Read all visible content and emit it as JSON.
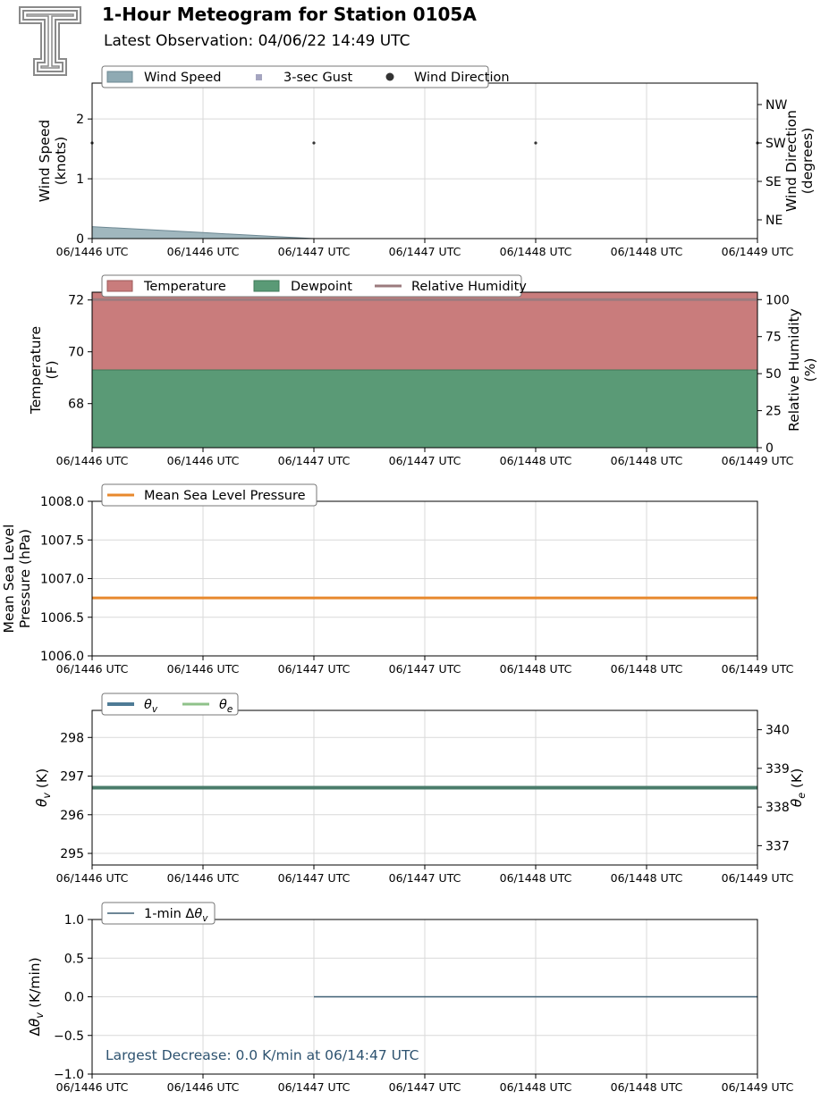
{
  "header": {
    "title": "1-Hour Meteogram for Station 0105A",
    "subtitle": "Latest Observation: 04/06/22 14:49 UTC"
  },
  "x_tick_labels": [
    "06/1446 UTC",
    "06/1446 UTC",
    "06/1447 UTC",
    "06/1447 UTC",
    "06/1448 UTC",
    "06/1448 UTC",
    "06/1449 UTC"
  ],
  "chart_data": [
    {
      "id": "wind",
      "type": "area",
      "ylabel": "Wind Speed\n(knots)",
      "y2label": "Wind Direction\n(degrees)",
      "ylim": [
        0,
        2.6
      ],
      "yticks": [
        0,
        1,
        2
      ],
      "y2ticks": [
        "NE",
        "SE",
        "SW",
        "NW"
      ],
      "legend": [
        "Wind Speed",
        "3-sec Gust",
        "Wind Direction"
      ],
      "wind_speed": {
        "x": [
          0,
          1,
          2,
          3,
          4,
          5,
          6
        ],
        "values": [
          0.2,
          0.1,
          0.0,
          0.0,
          0.0,
          0.0,
          0.0
        ]
      },
      "gust": {
        "x": [],
        "values": []
      },
      "wind_direction": {
        "x": [
          0,
          2,
          4,
          6
        ],
        "values": [
          "SW",
          "SW",
          "SW",
          "SW"
        ]
      },
      "grid": true,
      "colors": {
        "speed": "#8faab3",
        "direction": "#333333"
      }
    },
    {
      "id": "temp",
      "type": "area",
      "ylabel": "Temperature\n(F)",
      "y2label": "Relative Humidity\n(%)",
      "ylim": [
        66.3,
        72.3
      ],
      "yticks": [
        68,
        70,
        72
      ],
      "y2lim": [
        0,
        105
      ],
      "y2ticks": [
        0,
        25,
        50,
        75,
        100
      ],
      "legend": [
        "Temperature",
        "Dewpoint",
        "Relative Humidity"
      ],
      "temperature": {
        "x": [
          0,
          6
        ],
        "values": [
          72.3,
          72.3
        ]
      },
      "dewpoint": {
        "x": [
          0,
          6
        ],
        "values": [
          69.3,
          69.3
        ]
      },
      "relative_humidity": {
        "x": [
          0,
          6
        ],
        "values": [
          100,
          100
        ]
      },
      "grid": true,
      "colors": {
        "temperature": "#c97c7c",
        "dewpoint": "#5a9a76",
        "rh": "#9b7b7e"
      }
    },
    {
      "id": "pressure",
      "type": "line",
      "ylabel": "Mean Sea Level\nPressure (hPa)",
      "ylim": [
        1006.0,
        1008.0
      ],
      "yticks": [
        "1006.0",
        "1006.5",
        "1007.0",
        "1007.5",
        "1008.0"
      ],
      "legend": [
        "Mean Sea Level Pressure"
      ],
      "series": [
        {
          "name": "Mean Sea Level Pressure",
          "x": [
            0,
            6
          ],
          "values": [
            1006.75,
            1006.75
          ]
        }
      ],
      "grid": true,
      "colors": {
        "line": "#e8892d"
      }
    },
    {
      "id": "theta",
      "type": "line",
      "ylabel": "θv (K)",
      "y2label": "θe (K)",
      "ylim": [
        294.7,
        298.7
      ],
      "yticks": [
        295,
        296,
        297,
        298
      ],
      "y2lim": [
        336.5,
        340.5
      ],
      "y2ticks": [
        337,
        338,
        339,
        340
      ],
      "legend": [
        "θv",
        "θe"
      ],
      "series": [
        {
          "name": "θv",
          "x": [
            0,
            6
          ],
          "values": [
            296.7,
            296.7
          ]
        },
        {
          "name": "θe",
          "x": [
            0,
            6
          ],
          "values": [
            338.5,
            338.5
          ]
        }
      ],
      "grid": true,
      "colors": {
        "thetav": "#4e7b96",
        "thetae": "#8fc28a",
        "overlap": "#4a7c6a"
      }
    },
    {
      "id": "dtheta",
      "type": "line",
      "ylabel": "Δθv (K/min)",
      "ylim": [
        -1.0,
        1.0
      ],
      "yticks": [
        "−1.0",
        "−0.5",
        "0.0",
        "0.5",
        "1.0"
      ],
      "legend": [
        "1-min Δθv"
      ],
      "series": [
        {
          "name": "1-min Δθv",
          "x": [
            2,
            6
          ],
          "values": [
            0.0,
            0.0
          ]
        }
      ],
      "annotation": "Largest Decrease: 0.0 K/min at 06/14:47 UTC",
      "grid": true,
      "colors": {
        "line": "#3d5f73",
        "annotation": "#2e5370"
      }
    }
  ]
}
